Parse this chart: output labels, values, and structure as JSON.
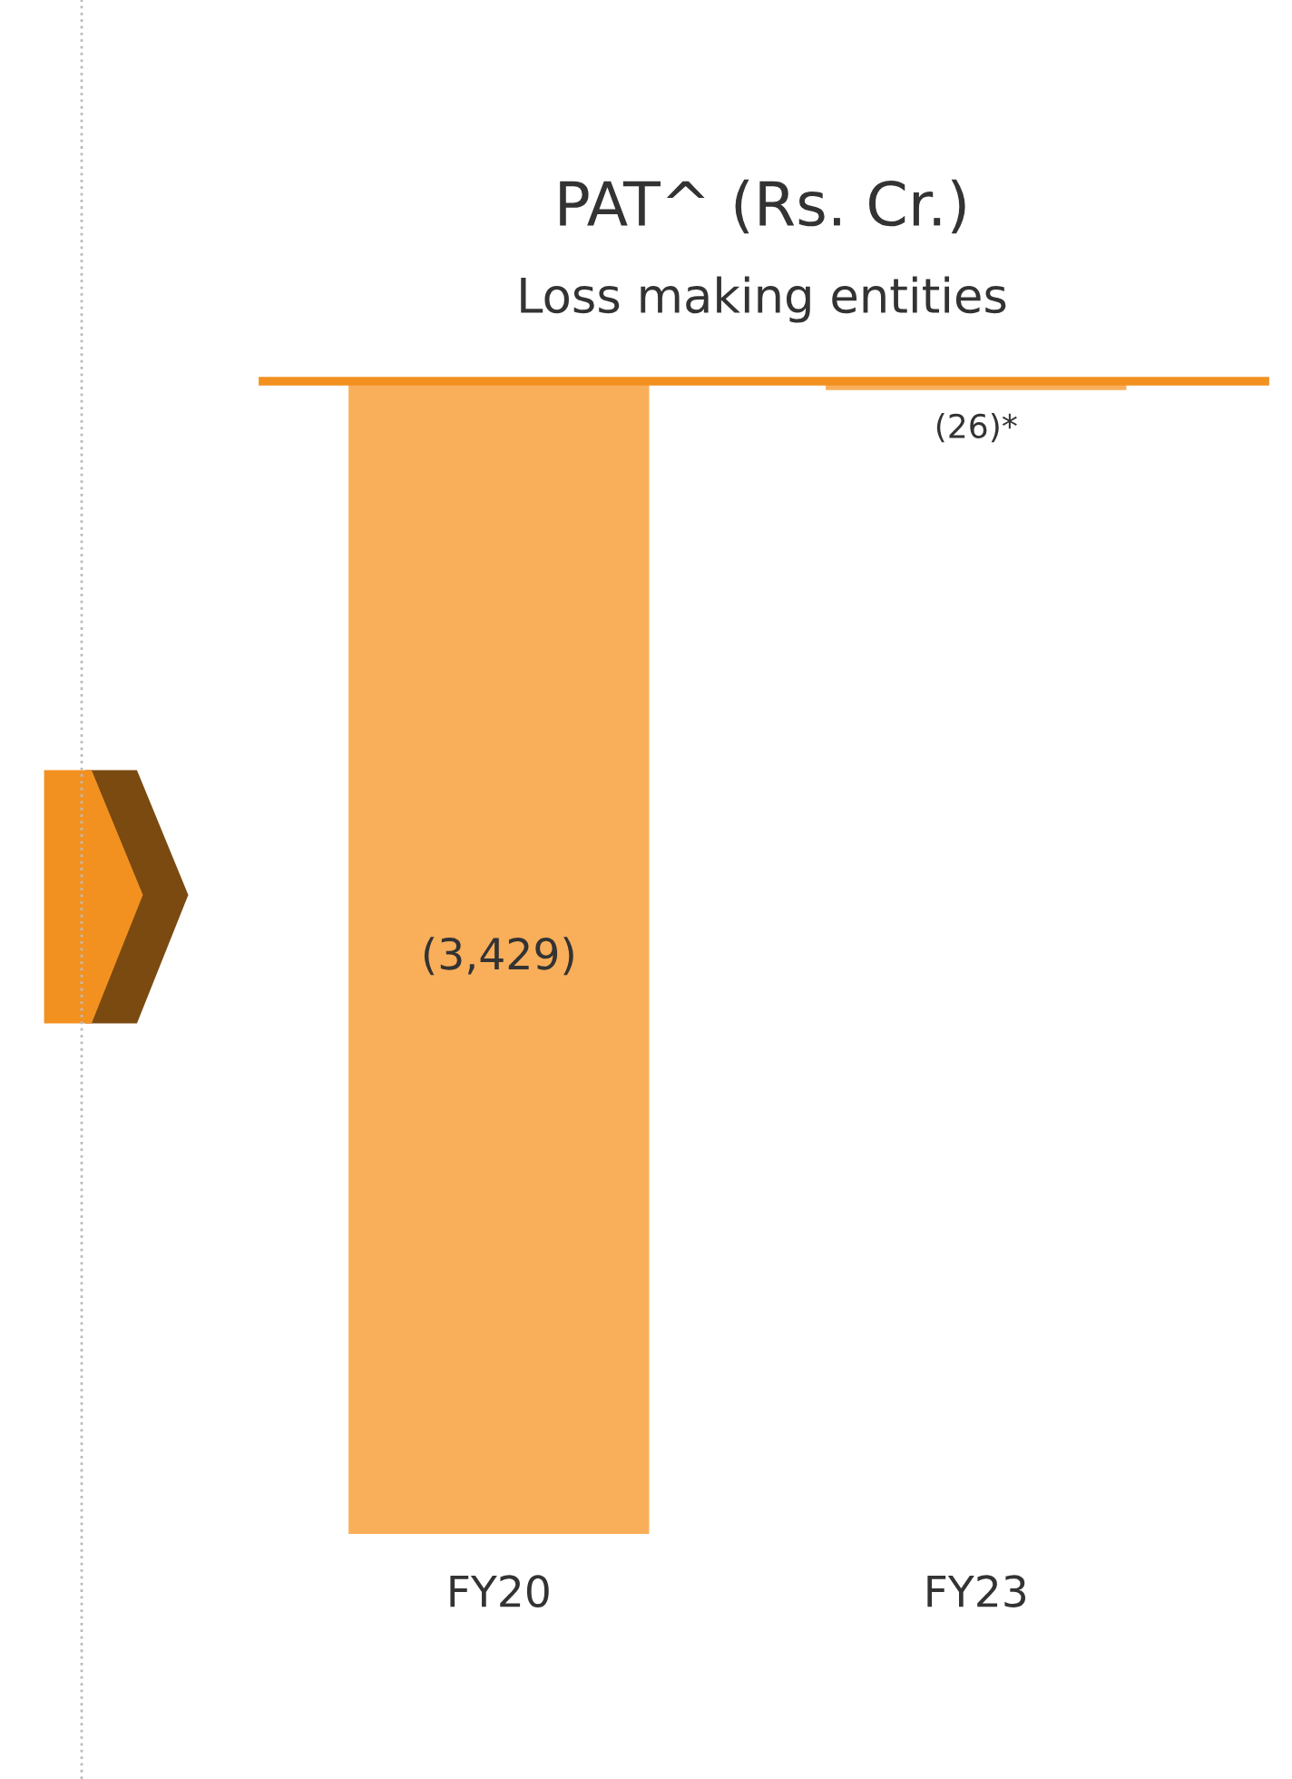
{
  "chart_data": {
    "type": "bar",
    "title": "PAT^ (Rs. Cr.)",
    "subtitle": "Loss making entities",
    "categories": [
      "FY20",
      "FY23"
    ],
    "values": [
      -3429,
      -26
    ],
    "color": "#f9ae5a",
    "value_labels": [
      "(3,429)",
      "(26)*"
    ]
  }
}
